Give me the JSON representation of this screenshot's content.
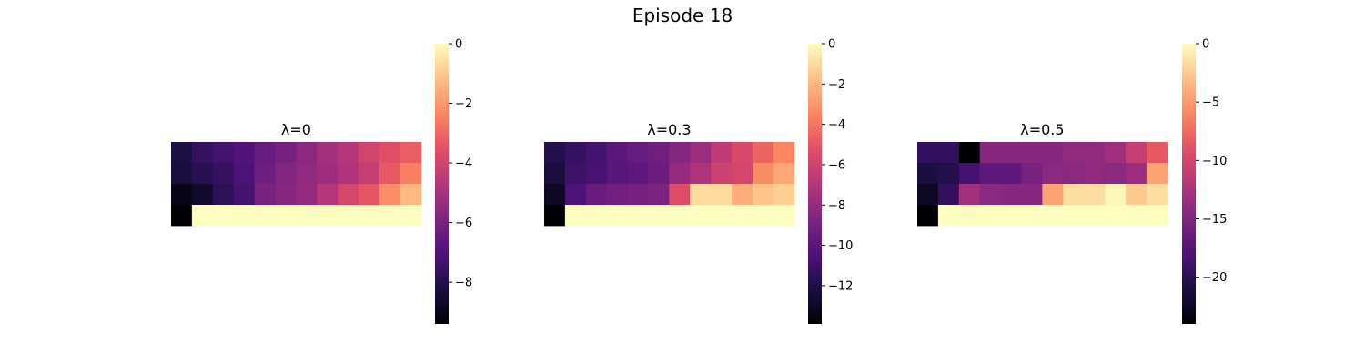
{
  "suptitle": "Episode 18",
  "chart_data": [
    {
      "type": "heatmap",
      "title": "λ=0",
      "colormap": "magma",
      "vmin": -9.4,
      "vmax": 0,
      "colorbar_ticks": [
        0,
        -2,
        -4,
        -6,
        -8
      ],
      "colorbar_tick_labels": [
        "0",
        "−2",
        "−4",
        "−6",
        "−8"
      ],
      "rows": 4,
      "cols": 12,
      "values": [
        [
          -8.2,
          -7.6,
          -7.3,
          -7.0,
          -6.5,
          -6.1,
          -5.6,
          -5.1,
          -4.7,
          -4.0,
          -3.6,
          -3.2
        ],
        [
          -8.3,
          -7.9,
          -7.6,
          -7.1,
          -6.3,
          -5.8,
          -5.5,
          -5.2,
          -4.8,
          -4.3,
          -3.3,
          -2.5
        ],
        [
          -9.0,
          -8.6,
          -7.8,
          -7.3,
          -6.0,
          -5.7,
          -5.4,
          -4.7,
          -3.9,
          -3.4,
          -2.2,
          -1.3
        ],
        [
          -9.4,
          0,
          0,
          0,
          0,
          0,
          0,
          0,
          0,
          0,
          0,
          0
        ]
      ]
    },
    {
      "type": "heatmap",
      "title": "λ=0.3",
      "colormap": "magma",
      "vmin": -13.9,
      "vmax": 0,
      "colorbar_ticks": [
        0,
        -2,
        -4,
        -6,
        -8,
        -10,
        -12
      ],
      "colorbar_tick_labels": [
        "0",
        "−2",
        "−4",
        "−6",
        "−8",
        "−10",
        "−12"
      ],
      "rows": 4,
      "cols": 12,
      "values": [
        [
          -11.8,
          -11.2,
          -10.8,
          -10.0,
          -9.6,
          -9.2,
          -8.5,
          -7.8,
          -6.6,
          -5.6,
          -4.5,
          -3.5
        ],
        [
          -12.3,
          -11.0,
          -10.7,
          -10.1,
          -9.9,
          -9.4,
          -8.0,
          -7.2,
          -6.1,
          -5.8,
          -3.3,
          -2.5
        ],
        [
          -13.0,
          -10.5,
          -9.5,
          -9.2,
          -9.0,
          -8.8,
          -5.4,
          -1.0,
          -1.0,
          -2.3,
          -1.6,
          -1.3
        ],
        [
          -13.9,
          0,
          0,
          0,
          0,
          0,
          0,
          0,
          0,
          0,
          0,
          0
        ]
      ]
    },
    {
      "type": "heatmap",
      "title": "λ=0.5",
      "colormap": "magma",
      "vmin": -24,
      "vmax": 0,
      "colorbar_ticks": [
        0,
        -5,
        -10,
        -15,
        -20
      ],
      "colorbar_tick_labels": [
        "0",
        "−5",
        "−10",
        "−15",
        "−20"
      ],
      "rows": 4,
      "cols": 12,
      "values": [
        [
          -19.5,
          -19.5,
          -24.0,
          -14.5,
          -14.5,
          -14.5,
          -14.5,
          -14.0,
          -14.0,
          -13.2,
          -11.0,
          -8.5
        ],
        [
          -21.0,
          -20.5,
          -18.5,
          -17.0,
          -17.0,
          -15.5,
          -14.3,
          -14.3,
          -14.0,
          -14.3,
          -13.5,
          -4.5
        ],
        [
          -22.5,
          -19.5,
          -13.0,
          -14.3,
          -14.5,
          -14.5,
          -4.5,
          -1.5,
          -1.5,
          -0.3,
          -2.5,
          -1.5
        ],
        [
          -24.0,
          0,
          0,
          0,
          0,
          0,
          0,
          0,
          0,
          0,
          0,
          0
        ]
      ]
    }
  ]
}
